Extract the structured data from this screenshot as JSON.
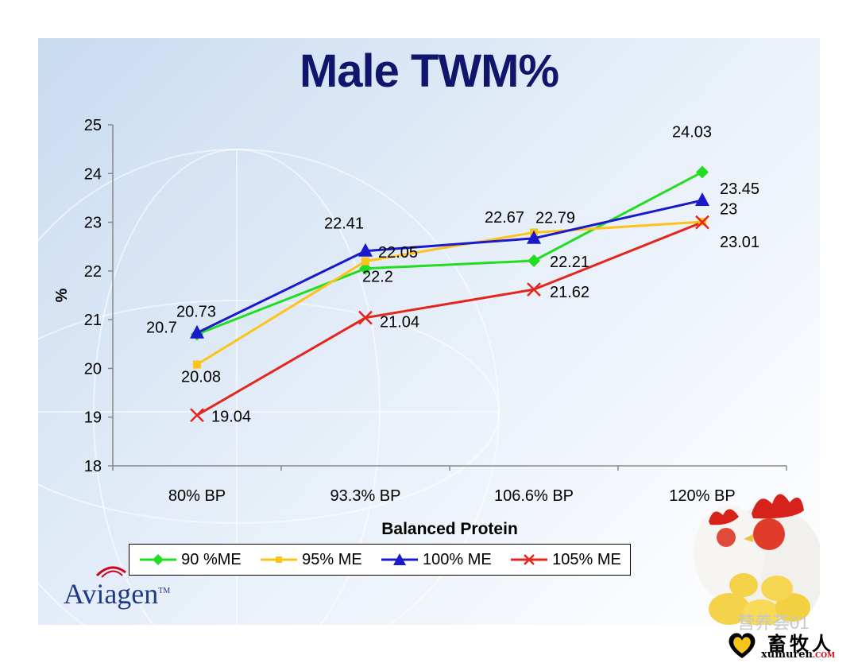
{
  "title": "Male TWM%",
  "chart_data": {
    "type": "line",
    "xlabel": "Balanced Protein",
    "ylabel": "%",
    "ylim": [
      18,
      25
    ],
    "yticks": [
      18,
      19,
      20,
      21,
      22,
      23,
      24,
      25
    ],
    "categories": [
      "80% BP",
      "93.3% BP",
      "106.6% BP",
      "120% BP"
    ],
    "grid": false,
    "legend_position": "bottom",
    "series": [
      {
        "name": "90 %ME",
        "color": "#22dd22",
        "marker": "diamond",
        "values": [
          20.7,
          22.05,
          22.21,
          24.03
        ]
      },
      {
        "name": "95% ME",
        "color": "#ffc21a",
        "marker": "square",
        "values": [
          20.08,
          22.2,
          22.79,
          23.01
        ]
      },
      {
        "name": "100% ME",
        "color": "#1a1acc",
        "marker": "triangle",
        "values": [
          20.73,
          22.41,
          22.67,
          23.45
        ]
      },
      {
        "name": "105% ME",
        "color": "#e3261e",
        "marker": "x",
        "values": [
          19.04,
          21.04,
          21.62,
          23.0
        ]
      }
    ],
    "data_labels": [
      {
        "text": "20.7",
        "x": 0,
        "y": 20.7,
        "dx": -64,
        "dy": -2
      },
      {
        "text": "20.73",
        "x": 0,
        "y": 20.73,
        "dx": -26,
        "dy": -20
      },
      {
        "text": "20.08",
        "x": 0,
        "y": 20.08,
        "dx": -20,
        "dy": 22
      },
      {
        "text": "19.04",
        "x": 0,
        "y": 19.04,
        "dx": 18,
        "dy": 8
      },
      {
        "text": "22.41",
        "x": 1,
        "y": 22.41,
        "dx": -52,
        "dy": -28
      },
      {
        "text": "22.05",
        "x": 1,
        "y": 22.05,
        "dx": 16,
        "dy": -14
      },
      {
        "text": "22.2",
        "x": 1,
        "y": 22.2,
        "dx": -4,
        "dy": 26
      },
      {
        "text": "21.04",
        "x": 1,
        "y": 21.04,
        "dx": 18,
        "dy": 12
      },
      {
        "text": "22.67",
        "x": 2,
        "y": 22.67,
        "dx": -62,
        "dy": -20
      },
      {
        "text": "22.79",
        "x": 2,
        "y": 22.79,
        "dx": 2,
        "dy": -12
      },
      {
        "text": "22.21",
        "x": 2,
        "y": 22.21,
        "dx": 20,
        "dy": 8
      },
      {
        "text": "21.62",
        "x": 2,
        "y": 21.62,
        "dx": 20,
        "dy": 10
      },
      {
        "text": "24.03",
        "x": 3,
        "y": 24.03,
        "dx": -38,
        "dy": -44
      },
      {
        "text": "23.45",
        "x": 3,
        "y": 23.45,
        "dx": 22,
        "dy": -8
      },
      {
        "text": "23",
        "x": 3,
        "y": 23.0,
        "dx": 22,
        "dy": -10
      },
      {
        "text": "23.01",
        "x": 3,
        "y": 23.01,
        "dx": 22,
        "dy": 32
      }
    ]
  },
  "branding": {
    "logo_text": "Aviagen",
    "logo_tm": "TM"
  },
  "watermark": {
    "text": "营养荟01",
    "badge_cn": "畜牧人",
    "badge_url": "xumuren",
    "badge_url_suffix": ".COM"
  }
}
